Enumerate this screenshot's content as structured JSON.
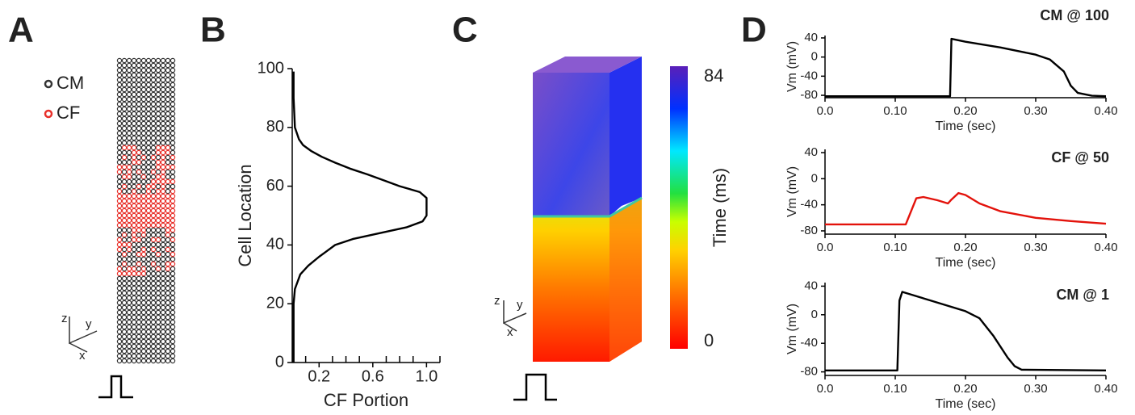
{
  "panel_labels": [
    "A",
    "B",
    "C",
    "D"
  ],
  "panel_a": {
    "legend": [
      {
        "name": "CM",
        "color": "#333333"
      },
      {
        "name": "CF",
        "color": "#e8302a"
      }
    ],
    "axes": [
      "z",
      "y",
      "x"
    ]
  },
  "panel_c": {
    "colorbar": {
      "label": "Time (ms)",
      "lim": [
        0,
        84
      ],
      "ticks": [
        0,
        84
      ]
    },
    "axes": [
      "z",
      "y",
      "x"
    ]
  },
  "chart_data": [
    {
      "type": "line",
      "xlabel": "CF Portion",
      "ylabel": "Cell Location",
      "color": "#000000",
      "x": [
        0.01,
        0.01,
        0.01,
        0.02,
        0.06,
        0.12,
        0.2,
        0.26,
        0.32,
        0.45,
        0.65,
        0.85,
        0.97,
        1.0,
        1.0,
        0.95,
        0.8,
        0.68,
        0.56,
        0.43,
        0.32,
        0.22,
        0.14,
        0.08,
        0.05,
        0.02,
        0.01,
        0.01
      ],
      "values": [
        0,
        10,
        20,
        25,
        30,
        33,
        36,
        38,
        40,
        42,
        44,
        46,
        48,
        50,
        56,
        58,
        60,
        62,
        64,
        66,
        68,
        70,
        72,
        74,
        76,
        80,
        90,
        99
      ],
      "xlim": [
        0,
        1.1
      ],
      "ylim": [
        0,
        100
      ],
      "xticks": [
        0.2,
        0.6,
        {
          "value": 1,
          "label": "1.0"
        }
      ],
      "xminorticks": [
        0.1,
        0.3,
        0.4,
        0.5,
        0.7,
        0.8,
        0.9,
        1.1
      ],
      "yticks": [
        0,
        20,
        40,
        60,
        80,
        100
      ]
    },
    {
      "type": "line",
      "title": "CM @ 100",
      "xlabel": "Time (sec)",
      "ylabel": "Vm (mV)",
      "color": "#000000",
      "x": [
        0,
        0.178,
        0.18,
        0.2,
        0.25,
        0.3,
        0.32,
        0.34,
        0.35,
        0.36,
        0.38,
        0.4
      ],
      "values": [
        -82,
        -82,
        38,
        32,
        20,
        5,
        -5,
        -30,
        -60,
        -75,
        -81,
        -82
      ],
      "xlim": [
        0,
        0.4
      ],
      "ylim": [
        -85,
        45
      ],
      "xticks": [
        {
          "value": 0,
          "label": "0.0"
        },
        {
          "value": 0.1,
          "label": "0.10"
        },
        {
          "value": 0.2,
          "label": "0.20"
        },
        {
          "value": 0.3,
          "label": "0.30"
        },
        {
          "value": 0.4,
          "label": "0.40"
        }
      ],
      "yticks": [
        40,
        0,
        -40,
        -80
      ]
    },
    {
      "type": "line",
      "title": "CF @ 50",
      "xlabel": "Time (sec)",
      "ylabel": "Vm (mV)",
      "color": "#e3120b",
      "x": [
        0,
        0.115,
        0.13,
        0.14,
        0.16,
        0.175,
        0.18,
        0.19,
        0.2,
        0.22,
        0.25,
        0.3,
        0.35,
        0.4
      ],
      "values": [
        -70,
        -70,
        -30,
        -28,
        -33,
        -38,
        -32,
        -22,
        -25,
        -38,
        -50,
        -60,
        -65,
        -69
      ],
      "xlim": [
        0,
        0.4
      ],
      "ylim": [
        -85,
        45
      ],
      "xticks": [
        {
          "value": 0,
          "label": "0.0"
        },
        {
          "value": 0.1,
          "label": "0.10"
        },
        {
          "value": 0.2,
          "label": "0.20"
        },
        {
          "value": 0.3,
          "label": "0.30"
        },
        {
          "value": 0.4,
          "label": "0.40"
        }
      ],
      "yticks": [
        40,
        0,
        -40,
        -80
      ]
    },
    {
      "type": "line",
      "title": "CM @ 1",
      "xlabel": "Time (sec)",
      "ylabel": "Vm (mV)",
      "color": "#000000",
      "x": [
        0,
        0.103,
        0.106,
        0.11,
        0.15,
        0.2,
        0.22,
        0.24,
        0.26,
        0.27,
        0.28,
        0.4
      ],
      "values": [
        -78,
        -78,
        20,
        32,
        20,
        5,
        -5,
        -30,
        -60,
        -72,
        -77,
        -78
      ],
      "xlim": [
        0,
        0.4
      ],
      "ylim": [
        -85,
        45
      ],
      "xticks": [
        {
          "value": 0,
          "label": "0.0"
        },
        {
          "value": 0.1,
          "label": "0.10"
        },
        {
          "value": 0.2,
          "label": "0.20"
        },
        {
          "value": 0.3,
          "label": "0.30"
        },
        {
          "value": 0.4,
          "label": "0.40"
        }
      ],
      "yticks": [
        40,
        0,
        -40,
        -80
      ]
    }
  ]
}
